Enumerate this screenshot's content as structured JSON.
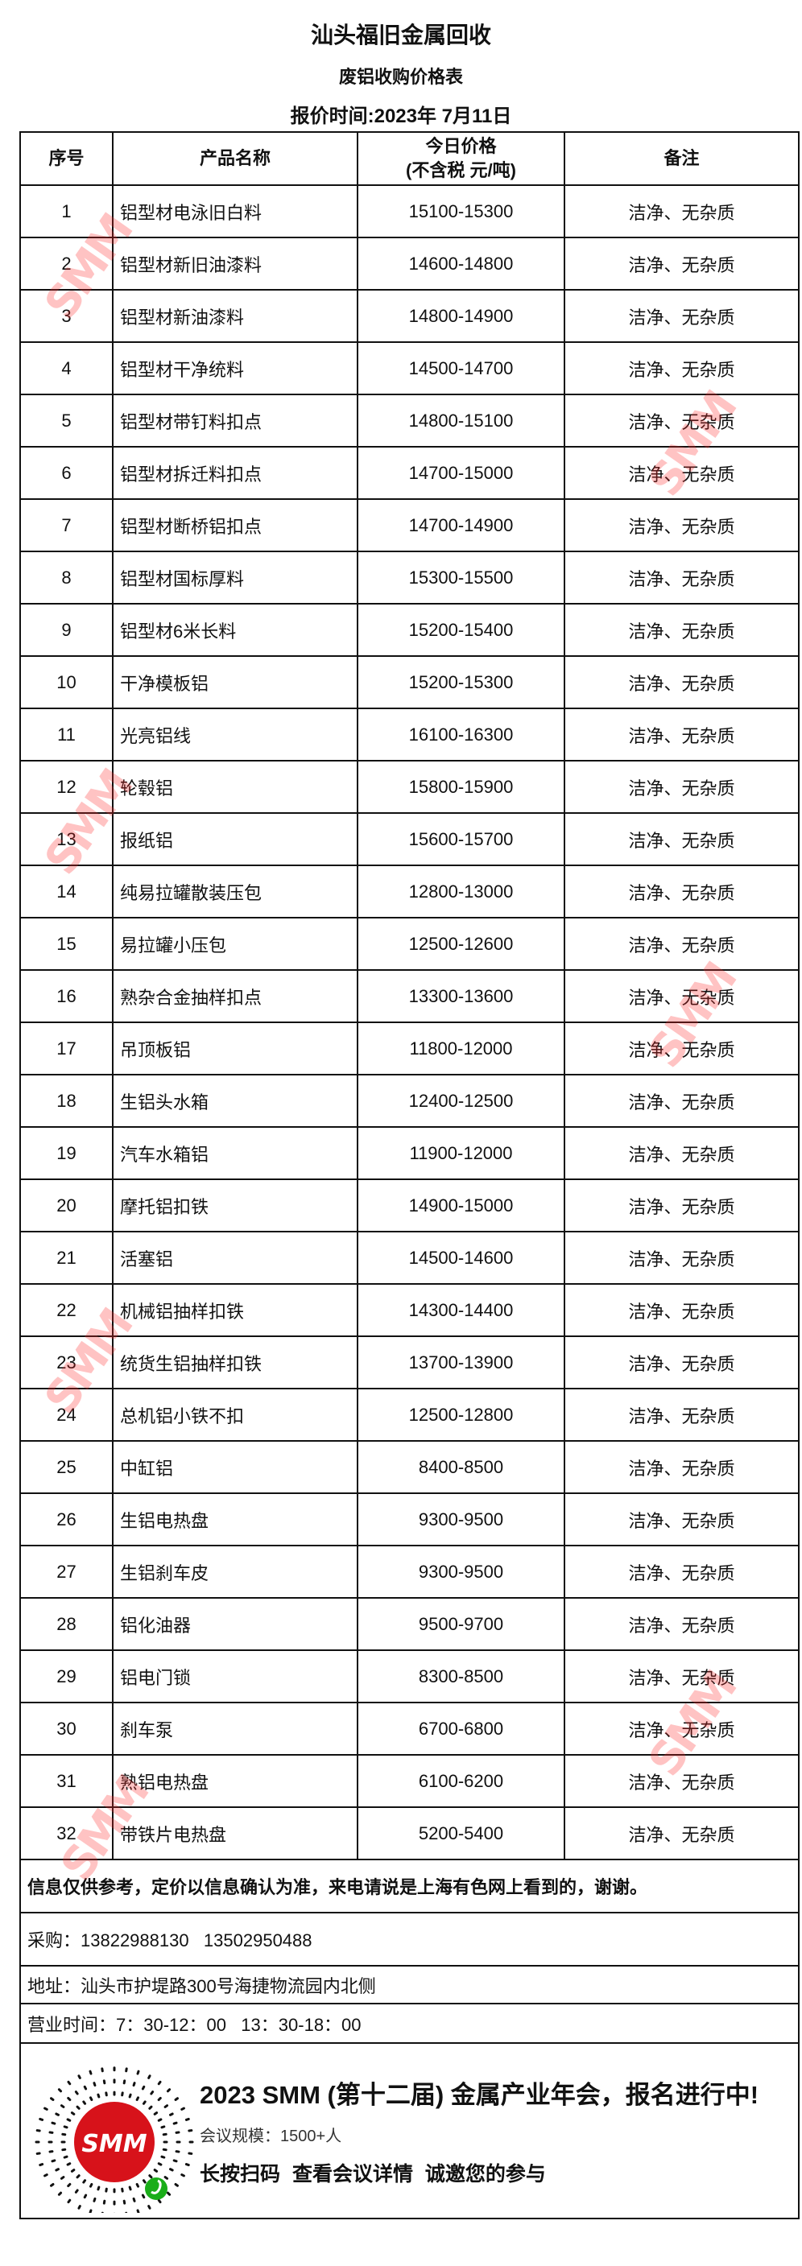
{
  "header": {
    "title": "汕头福旧金属回收",
    "subtitle": "废铝收购价格表",
    "date": "报价时间:2023年 7月11日"
  },
  "table": {
    "columns": [
      "序号",
      "产品名称",
      "今日价格",
      "(不含税 元/吨)",
      "备注"
    ],
    "rows": [
      {
        "no": "1",
        "name": "铝型材电泳旧白料",
        "price": "15100-15300",
        "note": "洁净、无杂质"
      },
      {
        "no": "2",
        "name": "铝型材新旧油漆料",
        "price": "14600-14800",
        "note": "洁净、无杂质"
      },
      {
        "no": "3",
        "name": "铝型材新油漆料",
        "price": "14800-14900",
        "note": "洁净、无杂质"
      },
      {
        "no": "4",
        "name": "铝型材干净统料",
        "price": "14500-14700",
        "note": "洁净、无杂质"
      },
      {
        "no": "5",
        "name": "铝型材带钉料扣点",
        "price": "14800-15100",
        "note": "洁净、无杂质"
      },
      {
        "no": "6",
        "name": "铝型材拆迁料扣点",
        "price": "14700-15000",
        "note": "洁净、无杂质"
      },
      {
        "no": "7",
        "name": "铝型材断桥铝扣点",
        "price": "14700-14900",
        "note": "洁净、无杂质"
      },
      {
        "no": "8",
        "name": "铝型材国标厚料",
        "price": "15300-15500",
        "note": "洁净、无杂质"
      },
      {
        "no": "9",
        "name": "铝型材6米长料",
        "price": "15200-15400",
        "note": "洁净、无杂质"
      },
      {
        "no": "10",
        "name": "干净模板铝",
        "price": "15200-15300",
        "note": "洁净、无杂质"
      },
      {
        "no": "11",
        "name": "光亮铝线",
        "price": "16100-16300",
        "note": "洁净、无杂质"
      },
      {
        "no": "12",
        "name": "轮毂铝",
        "price": "15800-15900",
        "note": "洁净、无杂质"
      },
      {
        "no": "13",
        "name": "报纸铝",
        "price": "15600-15700",
        "note": "洁净、无杂质"
      },
      {
        "no": "14",
        "name": "纯易拉罐散装压包",
        "price": "12800-13000",
        "note": "洁净、无杂质"
      },
      {
        "no": "15",
        "name": "易拉罐小压包",
        "price": "12500-12600",
        "note": "洁净、无杂质"
      },
      {
        "no": "16",
        "name": "熟杂合金抽样扣点",
        "price": "13300-13600",
        "note": "洁净、无杂质"
      },
      {
        "no": "17",
        "name": "吊顶板铝",
        "price": "11800-12000",
        "note": "洁净、无杂质"
      },
      {
        "no": "18",
        "name": "生铝头水箱",
        "price": "12400-12500",
        "note": "洁净、无杂质"
      },
      {
        "no": "19",
        "name": "汽车水箱铝",
        "price": "11900-12000",
        "note": "洁净、无杂质"
      },
      {
        "no": "20",
        "name": "摩托铝扣铁",
        "price": "14900-15000",
        "note": "洁净、无杂质"
      },
      {
        "no": "21",
        "name": "活塞铝",
        "price": "14500-14600",
        "note": "洁净、无杂质"
      },
      {
        "no": "22",
        "name": "机械铝抽样扣铁",
        "price": "14300-14400",
        "note": "洁净、无杂质"
      },
      {
        "no": "23",
        "name": "统货生铝抽样扣铁",
        "price": "13700-13900",
        "note": "洁净、无杂质"
      },
      {
        "no": "24",
        "name": "总机铝小铁不扣",
        "price": "12500-12800",
        "note": "洁净、无杂质"
      },
      {
        "no": "25",
        "name": "中缸铝",
        "price": "8400-8500",
        "note": "洁净、无杂质"
      },
      {
        "no": "26",
        "name": "生铝电热盘",
        "price": "9300-9500",
        "note": "洁净、无杂质"
      },
      {
        "no": "27",
        "name": "生铝刹车皮",
        "price": "9300-9500",
        "note": "洁净、无杂质"
      },
      {
        "no": "28",
        "name": "铝化油器",
        "price": "9500-9700",
        "note": "洁净、无杂质"
      },
      {
        "no": "29",
        "name": "铝电门锁",
        "price": "8300-8500",
        "note": "洁净、无杂质"
      },
      {
        "no": "30",
        "name": "刹车泵",
        "price": "6700-6800",
        "note": "洁净、无杂质"
      },
      {
        "no": "31",
        "name": "熟铝电热盘",
        "price": "6100-6200",
        "note": "洁净、无杂质"
      },
      {
        "no": "32",
        "name": "带铁片电热盘",
        "price": "5200-5400",
        "note": "洁净、无杂质"
      }
    ]
  },
  "footer": {
    "disclaimer": "信息仅供参考，定价以信息确认为准，来电请说是上海有色网上看到的，谢谢。",
    "purchase": "采购：13822988130   13502950488",
    "address": "地址：汕头市护堤路300号海捷物流园内北侧",
    "hours": "营业时间：7：30-12：00   13：30-18：00"
  },
  "banner": {
    "logo_text": "SMM",
    "headline": "2023 SMM (第十二届) 金属产业年会，报名进行中!",
    "scale": "会议规模：1500+人",
    "cta": "长按扫码  查看会议详情  诚邀您的参与",
    "icon": "qr-code-icon",
    "brand_color": "#d7121a",
    "miniprogram_color": "#1aad19"
  },
  "watermark": {
    "text": "SMM",
    "color": "#ff2828"
  }
}
